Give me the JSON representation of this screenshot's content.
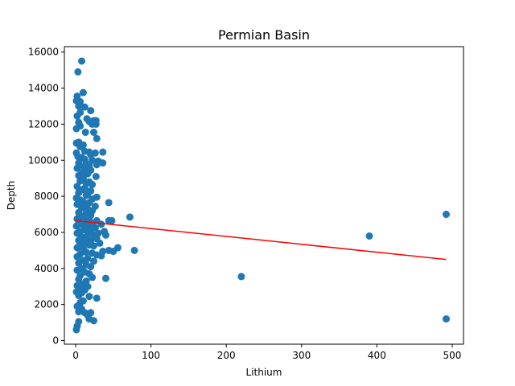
{
  "chart_data": {
    "type": "scatter",
    "title": "Permian Basin",
    "xlabel": "Lithium",
    "ylabel": "Depth",
    "xlim": [
      -15,
      515
    ],
    "ylim": [
      -200,
      16300
    ],
    "xticks": [
      0,
      100,
      200,
      300,
      400,
      500
    ],
    "yticks": [
      0,
      2000,
      4000,
      6000,
      8000,
      10000,
      12000,
      14000,
      16000
    ],
    "grid": false,
    "legend": "none",
    "colors": {
      "points": "#1f77b4",
      "fit_line": "#ff0000"
    },
    "fit_line": {
      "x": [
        0,
        492
      ],
      "y": [
        6650,
        4500
      ]
    },
    "points": [
      [
        8,
        15500
      ],
      [
        3,
        14900
      ],
      [
        10,
        13750
      ],
      [
        2,
        13550
      ],
      [
        6,
        13250
      ],
      [
        1,
        13300
      ],
      [
        4,
        13000
      ],
      [
        12,
        12950
      ],
      [
        20,
        12750
      ],
      [
        6,
        12650
      ],
      [
        2,
        12450
      ],
      [
        15,
        12300
      ],
      [
        24,
        12200
      ],
      [
        27,
        12200
      ],
      [
        4,
        12100
      ],
      [
        18,
        12150
      ],
      [
        22,
        12000
      ],
      [
        27,
        12000
      ],
      [
        6,
        11900
      ],
      [
        1,
        11750
      ],
      [
        13,
        11550
      ],
      [
        24,
        11550
      ],
      [
        28,
        11200
      ],
      [
        4,
        11000
      ],
      [
        10,
        10850
      ],
      [
        1,
        10950
      ],
      [
        6,
        10750
      ],
      [
        12,
        10500
      ],
      [
        18,
        10450
      ],
      [
        36,
        10450
      ],
      [
        26,
        10400
      ],
      [
        1,
        10400
      ],
      [
        20,
        10300
      ],
      [
        3,
        10200
      ],
      [
        8,
        10150
      ],
      [
        12,
        10050
      ],
      [
        22,
        10000
      ],
      [
        4,
        9850
      ],
      [
        30,
        9950
      ],
      [
        14,
        9800
      ],
      [
        6,
        9700
      ],
      [
        18,
        9700
      ],
      [
        28,
        9750
      ],
      [
        36,
        9850
      ],
      [
        2,
        9550
      ],
      [
        12,
        9500
      ],
      [
        20,
        9450
      ],
      [
        8,
        9300
      ],
      [
        16,
        9250
      ],
      [
        4,
        9150
      ],
      [
        27,
        9100
      ],
      [
        10,
        9000
      ],
      [
        6,
        8850
      ],
      [
        18,
        8800
      ],
      [
        14,
        8700
      ],
      [
        22,
        8650
      ],
      [
        2,
        8550
      ],
      [
        12,
        8450
      ],
      [
        8,
        8350
      ],
      [
        20,
        8300
      ],
      [
        4,
        8200
      ],
      [
        16,
        8150
      ],
      [
        28,
        7950
      ],
      [
        14,
        8050
      ],
      [
        1,
        7900
      ],
      [
        22,
        7850
      ],
      [
        6,
        7800
      ],
      [
        10,
        7700
      ],
      [
        18,
        7650
      ],
      [
        44,
        7650
      ],
      [
        2,
        7550
      ],
      [
        12,
        7500
      ],
      [
        26,
        7450
      ],
      [
        8,
        7350
      ],
      [
        16,
        7300
      ],
      [
        22,
        7200
      ],
      [
        4,
        7100
      ],
      [
        14,
        7050
      ],
      [
        20,
        6950
      ],
      [
        6,
        6950
      ],
      [
        10,
        6850
      ],
      [
        72,
        6850
      ],
      [
        2,
        6750
      ],
      [
        18,
        6700
      ],
      [
        28,
        6650
      ],
      [
        44,
        6650
      ],
      [
        48,
        6650
      ],
      [
        4,
        6600
      ],
      [
        14,
        6550
      ],
      [
        22,
        6500
      ],
      [
        8,
        6450
      ],
      [
        34,
        6450
      ],
      [
        1,
        6350
      ],
      [
        16,
        6300
      ],
      [
        26,
        6250
      ],
      [
        12,
        6150
      ],
      [
        20,
        6100
      ],
      [
        38,
        6050
      ],
      [
        6,
        6050
      ],
      [
        30,
        5950
      ],
      [
        2,
        5950
      ],
      [
        16,
        5900
      ],
      [
        24,
        5850
      ],
      [
        40,
        5850
      ],
      [
        8,
        5750
      ],
      [
        14,
        5700
      ],
      [
        28,
        5650
      ],
      [
        4,
        5550
      ],
      [
        20,
        5550
      ],
      [
        12,
        5450
      ],
      [
        32,
        5400
      ],
      [
        6,
        5350
      ],
      [
        18,
        5300
      ],
      [
        24,
        5250
      ],
      [
        2,
        5150
      ],
      [
        56,
        5150
      ],
      [
        10,
        5100
      ],
      [
        44,
        5000
      ],
      [
        50,
        4950
      ],
      [
        78,
        5000
      ],
      [
        36,
        4950
      ],
      [
        14,
        4900
      ],
      [
        22,
        4850
      ],
      [
        6,
        4800
      ],
      [
        28,
        4750
      ],
      [
        34,
        4700
      ],
      [
        2,
        4650
      ],
      [
        16,
        4550
      ],
      [
        10,
        4450
      ],
      [
        24,
        4400
      ],
      [
        4,
        4300
      ],
      [
        14,
        4200
      ],
      [
        20,
        4100
      ],
      [
        8,
        4000
      ],
      [
        2,
        3900
      ],
      [
        12,
        3800
      ],
      [
        18,
        3700
      ],
      [
        6,
        3600
      ],
      [
        22,
        3500
      ],
      [
        40,
        3450
      ],
      [
        220,
        3550
      ],
      [
        4,
        3400
      ],
      [
        14,
        3300
      ],
      [
        10,
        3150
      ],
      [
        2,
        3050
      ],
      [
        16,
        3000
      ],
      [
        6,
        2900
      ],
      [
        12,
        2800
      ],
      [
        8,
        2650
      ],
      [
        1,
        2700
      ],
      [
        4,
        2500
      ],
      [
        18,
        2450
      ],
      [
        28,
        2350
      ],
      [
        10,
        2200
      ],
      [
        6,
        2100
      ],
      [
        2,
        1900
      ],
      [
        8,
        1750
      ],
      [
        4,
        1600
      ],
      [
        12,
        1550
      ],
      [
        20,
        1550
      ],
      [
        16,
        1400
      ],
      [
        18,
        1200
      ],
      [
        24,
        1100
      ],
      [
        4,
        1050
      ],
      [
        2,
        800
      ],
      [
        1,
        600
      ],
      [
        390,
        5800
      ],
      [
        492,
        7000
      ],
      [
        492,
        1200
      ]
    ]
  }
}
